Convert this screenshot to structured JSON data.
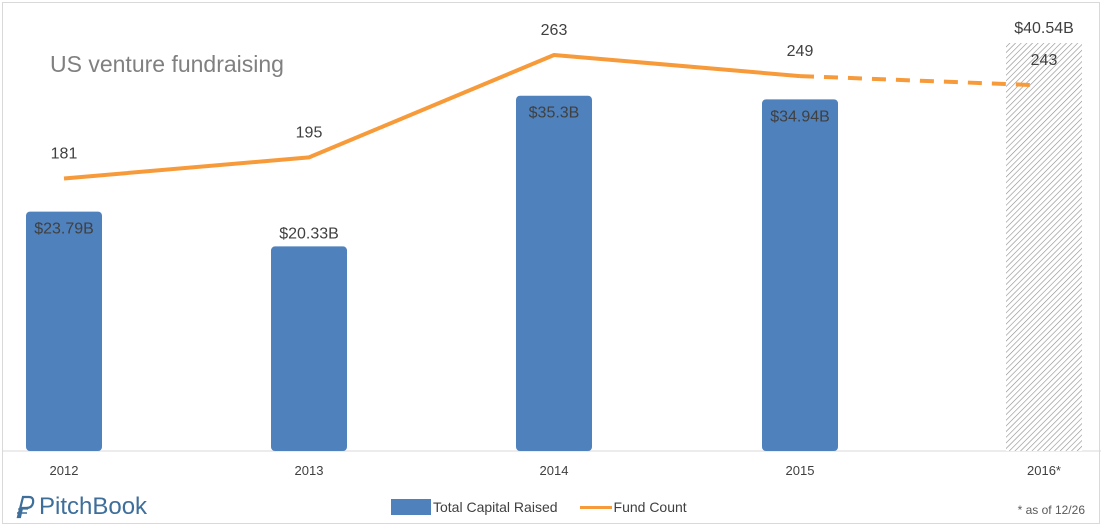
{
  "chart_data": {
    "type": "bar",
    "title": "US venture fundraising",
    "categories": [
      "2012",
      "2013",
      "2014",
      "2015",
      "2016*"
    ],
    "series": [
      {
        "name": "Total Capital Raised",
        "kind": "bar",
        "values": [
          23.79,
          20.33,
          35.3,
          34.94,
          40.54
        ],
        "labels": [
          "$23.79B",
          "$20.33B",
          "$35.3B",
          "$34.94B",
          "$40.54B"
        ],
        "color": "#4f81bd",
        "partial_last": true
      },
      {
        "name": "Fund Count",
        "kind": "line",
        "values": [
          181,
          195,
          263,
          249,
          243
        ],
        "labels": [
          "181",
          "195",
          "263",
          "249",
          "243"
        ],
        "color": "#f79a3a",
        "dashed_last_segment": true
      }
    ],
    "xlabel": "",
    "ylabel": "",
    "bar_ylim": [
      0,
      40.54
    ],
    "line_ylim": [
      0,
      263
    ],
    "legend": "bottom-center",
    "grid": false
  },
  "brand": {
    "name": "PitchBook",
    "color": "#3e6e9a"
  },
  "footnote": "* as of 12/26"
}
